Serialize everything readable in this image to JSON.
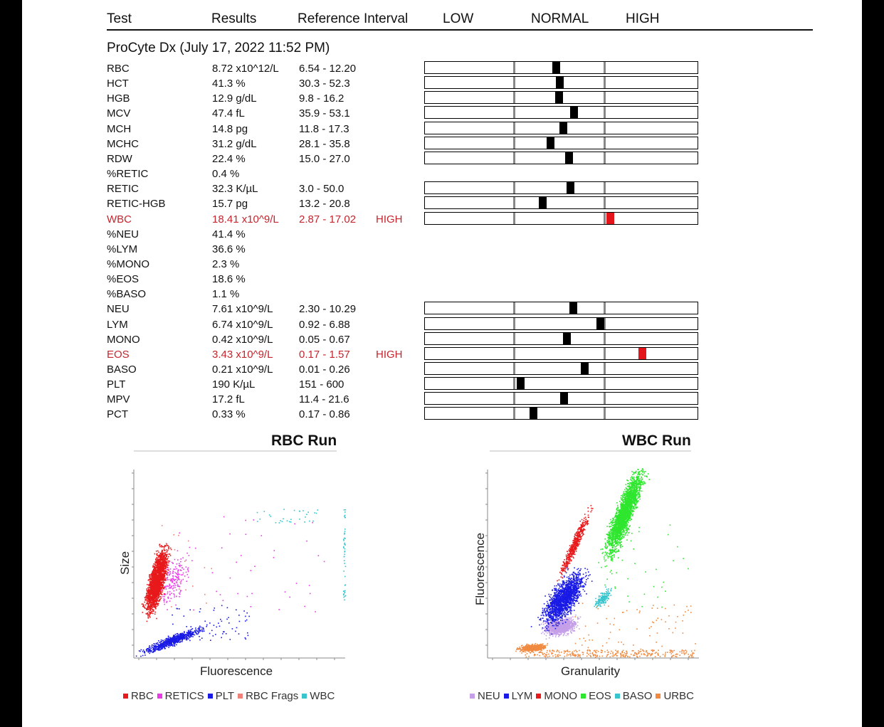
{
  "header": {
    "test": "Test",
    "results": "Results",
    "reference": "Reference Interval",
    "low": "LOW",
    "normal": "NORMAL",
    "high": "HIGH"
  },
  "section_title": "ProCyte Dx (July 17, 2022 11:52 PM)",
  "rows": [
    {
      "test": "RBC",
      "result": "8.72 x10^12/L",
      "ref": "6.54 - 12.20",
      "flag": "",
      "pos": 0.46
    },
    {
      "test": "HCT",
      "result": "41.3 %",
      "ref": "30.3 - 52.3",
      "flag": "",
      "pos": 0.5
    },
    {
      "test": "HGB",
      "result": "12.9 g/dL",
      "ref": "9.8 - 16.2",
      "flag": "",
      "pos": 0.49
    },
    {
      "test": "MCV",
      "result": "47.4 fL",
      "ref": "35.9 - 53.1",
      "flag": "",
      "pos": 0.66
    },
    {
      "test": "MCH",
      "result": "14.8 pg",
      "ref": "11.8 - 17.3",
      "flag": "",
      "pos": 0.54
    },
    {
      "test": "MCHC",
      "result": "31.2 g/dL",
      "ref": "28.1 - 35.8",
      "flag": "",
      "pos": 0.4
    },
    {
      "test": "RDW",
      "result": "22.4 %",
      "ref": "15.0 - 27.0",
      "flag": "",
      "pos": 0.6
    },
    {
      "test": "%RETIC",
      "result": "0.4 %",
      "ref": "",
      "flag": ""
    },
    {
      "test": "RETIC",
      "result": "32.3 K/µL",
      "ref": "3.0 - 50.0",
      "flag": "",
      "pos": 0.62
    },
    {
      "test": "RETIC-HGB",
      "result": "15.7 pg",
      "ref": "13.2 - 20.8",
      "flag": "",
      "pos": 0.31
    },
    {
      "test": "WBC",
      "result": "18.41 x10^9/L",
      "ref": "2.87 - 17.02",
      "flag": "HIGH",
      "pos": 1.06,
      "abnormal": true
    },
    {
      "test": "%NEU",
      "result": "41.4 %",
      "ref": "",
      "flag": ""
    },
    {
      "test": "%LYM",
      "result": "36.6 %",
      "ref": "",
      "flag": ""
    },
    {
      "test": "%MONO",
      "result": "2.3 %",
      "ref": "",
      "flag": ""
    },
    {
      "test": "%EOS",
      "result": "18.6 %",
      "ref": "",
      "flag": ""
    },
    {
      "test": "%BASO",
      "result": "1.1 %",
      "ref": "",
      "flag": ""
    },
    {
      "test": "NEU",
      "result": "7.61 x10^9/L",
      "ref": "2.30 - 10.29",
      "flag": "",
      "pos": 0.65
    },
    {
      "test": "LYM",
      "result": "6.74 x10^9/L",
      "ref": "0.92 - 6.88",
      "flag": "",
      "pos": 0.95
    },
    {
      "test": "MONO",
      "result": "0.42 x10^9/L",
      "ref": "0.05 - 0.67",
      "flag": "",
      "pos": 0.58
    },
    {
      "test": "EOS",
      "result": "3.43 x10^9/L",
      "ref": "0.17 - 1.57",
      "flag": "HIGH",
      "pos": 1.42,
      "abnormal": true
    },
    {
      "test": "BASO",
      "result": "0.21 x10^9/L",
      "ref": "0.01 - 0.26",
      "flag": "",
      "pos": 0.78
    },
    {
      "test": "PLT",
      "result": "190 K/µL",
      "ref": "151 - 600",
      "flag": "",
      "pos": 0.06
    },
    {
      "test": "MPV",
      "result": "17.2 fL",
      "ref": "11.4 - 21.6",
      "flag": "",
      "pos": 0.55
    },
    {
      "test": "PCT",
      "result": "0.33 %",
      "ref": "0.17 - 0.86",
      "flag": "",
      "pos": 0.21
    }
  ],
  "rbc_run": {
    "title": "RBC Run",
    "xlabel": "Fluorescence",
    "ylabel": "Size",
    "legend": [
      {
        "label": "RBC",
        "color": "#e8191b"
      },
      {
        "label": "RETICS",
        "color": "#e83be8"
      },
      {
        "label": "PLT",
        "color": "#1a1ae6"
      },
      {
        "label": "RBC Frags",
        "color": "#f0807a"
      },
      {
        "label": "WBC",
        "color": "#37c4cc"
      }
    ]
  },
  "wbc_run": {
    "title": "WBC Run",
    "xlabel": "Granularity",
    "ylabel": "Fluorescence",
    "legend": [
      {
        "label": "NEU",
        "color": "#c5a0e8"
      },
      {
        "label": "LYM",
        "color": "#1a1ae6"
      },
      {
        "label": "MONO",
        "color": "#e8191b"
      },
      {
        "label": "EOS",
        "color": "#2ee62e"
      },
      {
        "label": "BASO",
        "color": "#37c4cc"
      },
      {
        "label": "URBC",
        "color": "#f08a40"
      }
    ]
  },
  "colors": {
    "abnormal": "#c4262e",
    "marker": "#000000",
    "marker_abnormal": "#e4141b"
  }
}
